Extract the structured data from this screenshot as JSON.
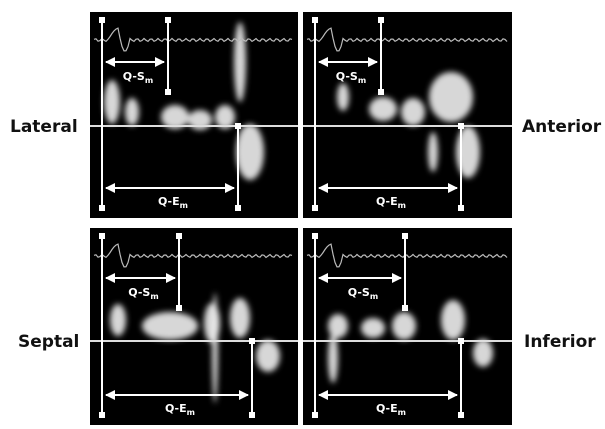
{
  "panels": [
    {
      "label": "Lateral",
      "qs": {
        "text": "Q-S",
        "sub": "m"
      },
      "qe": {
        "text": "Q-E",
        "sub": "m"
      }
    },
    {
      "label": "Anterior",
      "qs": {
        "text": "Q-S",
        "sub": "m"
      },
      "qe": {
        "text": "Q-E",
        "sub": "m"
      }
    },
    {
      "label": "Septal",
      "qs": {
        "text": "Q-S",
        "sub": "m"
      },
      "qe": {
        "text": "Q-E",
        "sub": "m"
      }
    },
    {
      "label": "Inferior",
      "qs": {
        "text": "Q-S",
        "sub": "m"
      },
      "qe": {
        "text": "Q-E",
        "sub": "m"
      }
    }
  ]
}
